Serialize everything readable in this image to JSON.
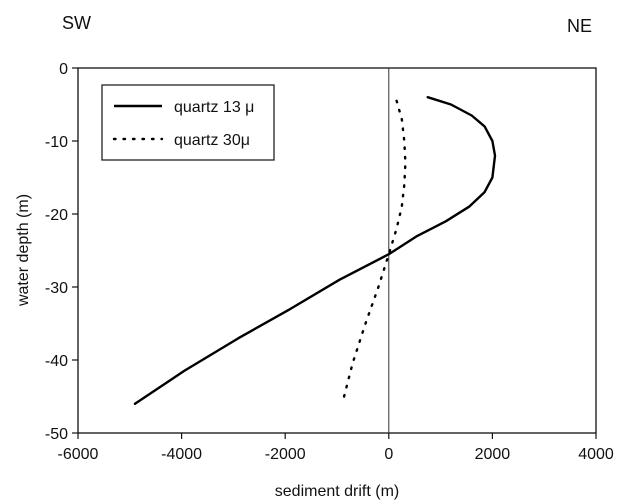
{
  "chart_data": {
    "type": "line",
    "xlabel": "sediment drift (m)",
    "ylabel": "water depth (m)",
    "xlim": [
      -6000,
      4000
    ],
    "ylim": [
      -50,
      0
    ],
    "xticks": [
      -6000,
      -4000,
      -2000,
      0,
      2000,
      4000
    ],
    "yticks": [
      0,
      -10,
      -20,
      -30,
      -40,
      -50
    ],
    "grid": false,
    "legend_position": "top-left",
    "corner_labels": {
      "left": "SW",
      "right": "NE"
    },
    "reference_line_x": 0,
    "series": [
      {
        "name": "quartz 13 μ",
        "style": "solid",
        "color": "#000000",
        "x": [
          750,
          1200,
          1600,
          1850,
          2000,
          2050,
          2000,
          1850,
          1550,
          1100,
          550,
          0,
          -950,
          -1900,
          -2900,
          -3950,
          -4900
        ],
        "y": [
          -4,
          -5,
          -6.5,
          -8,
          -10,
          -12,
          -15,
          -17,
          -19,
          -21,
          -23,
          -25.5,
          -29,
          -33,
          -37,
          -41.5,
          -46
        ]
      },
      {
        "name": "quartz 30μ",
        "style": "dotted",
        "color": "#000000",
        "x": [
          150,
          250,
          300,
          320,
          300,
          250,
          150,
          0,
          -200,
          -450,
          -700,
          -900
        ],
        "y": [
          -4.5,
          -7,
          -10,
          -13,
          -16,
          -19,
          -22,
          -25.5,
          -30,
          -35,
          -40.5,
          -46
        ]
      }
    ]
  }
}
